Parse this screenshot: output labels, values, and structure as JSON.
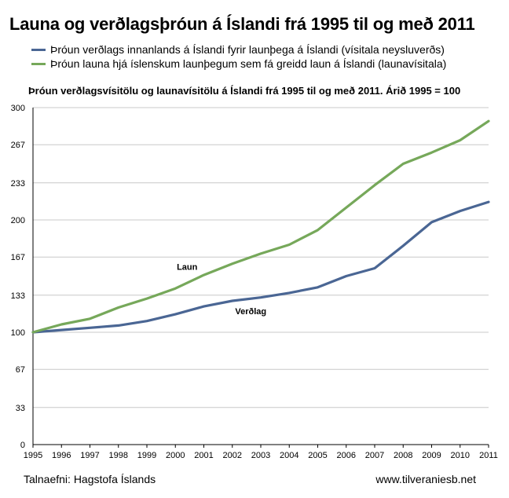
{
  "chart_data": {
    "type": "line",
    "title": "Launa og verðlagsþróun á Íslandi frá 1995 til og með 2011",
    "subtitle": "Þróun verðlagsvísitölu og launavísitölu á Íslandi frá 1995 til og með 2011. Árið 1995 = 100",
    "x": [
      1995,
      1996,
      1997,
      1998,
      1999,
      2000,
      2001,
      2002,
      2003,
      2004,
      2005,
      2006,
      2007,
      2008,
      2009,
      2010,
      2011
    ],
    "ylim": [
      0,
      300
    ],
    "yticks": [
      0,
      33,
      67,
      100,
      133,
      167,
      200,
      233,
      267,
      300
    ],
    "grid": true,
    "legend_position": "top",
    "series": [
      {
        "name": "Þróun verðlags innanlands á Íslandi fyrir launþega á Íslandi (vísitala neysluverðs)",
        "label": "Verðlag",
        "color": "#4a6694",
        "values": [
          100,
          102,
          104,
          106,
          110,
          116,
          123,
          128,
          131,
          135,
          140,
          150,
          157,
          177,
          198,
          208,
          216
        ]
      },
      {
        "name": "Þróun launa hjá íslenskum launþegum sem fá greidd laun á Íslandi (launavísitala)",
        "label": "Laun",
        "color": "#76a85a",
        "values": [
          100,
          107,
          112,
          122,
          130,
          139,
          151,
          161,
          170,
          178,
          191,
          211,
          231,
          250,
          260,
          271,
          288
        ]
      }
    ]
  },
  "footer": {
    "source": "Talnaefni: Hagstofa Íslands",
    "website": "www.tilveraniesb.net"
  }
}
